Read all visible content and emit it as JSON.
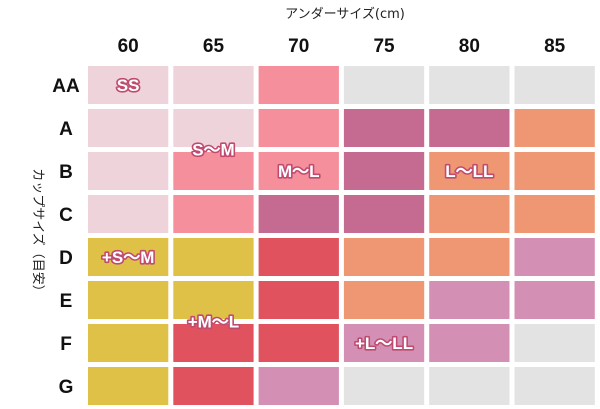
{
  "chart_data": {
    "type": "heatmap",
    "xlabel": "アンダーサイズ(cm)",
    "ylabel": "カップサイズ（目安）",
    "x": [
      "60",
      "65",
      "70",
      "75",
      "80",
      "85"
    ],
    "y": [
      "AA",
      "A",
      "B",
      "C",
      "D",
      "E",
      "F",
      "G"
    ],
    "size_labels": [
      "SS",
      "S～M",
      "M～L",
      "L～LL",
      "+S～M",
      "+M～L",
      "+L～LL"
    ],
    "cells": [
      [
        "SS",
        "SS",
        "S～M",
        "",
        "",
        ""
      ],
      [
        "SS",
        "SS",
        "S～M",
        "M～L",
        "M～L",
        "L～LL"
      ],
      [
        "SS",
        "S～M",
        "S～M",
        "M～L",
        "L～LL",
        "L～LL"
      ],
      [
        "SS",
        "S～M",
        "M～L",
        "M～L",
        "L～LL",
        "L～LL"
      ],
      [
        "+S～M",
        "+S～M",
        "+M～L",
        "L～LL",
        "L～LL",
        "+L～LL"
      ],
      [
        "+S～M",
        "+S～M",
        "+M～L",
        "L～LL",
        "+L～LL",
        "+L～LL"
      ],
      [
        "+S～M",
        "+M～L",
        "+M～L",
        "+L～LL",
        "+L～LL",
        ""
      ],
      [
        "+S～M",
        "+M～L",
        "+L～LL",
        "",
        "",
        ""
      ]
    ],
    "label_positions": [
      {
        "text": "SS",
        "col": 0.5,
        "row": 0.5
      },
      {
        "text": "S～M",
        "col": 1.5,
        "row": 2.0
      },
      {
        "text": "M～L",
        "col": 2.5,
        "row": 2.5
      },
      {
        "text": "L～LL",
        "col": 4.5,
        "row": 2.5
      },
      {
        "text": "+S～M",
        "col": 0.5,
        "row": 4.5
      },
      {
        "text": "+M～L",
        "col": 1.5,
        "row": 6.0
      },
      {
        "text": "+L～LL",
        "col": 3.5,
        "row": 6.5
      }
    ],
    "colors": {
      "SS": "#efd3da",
      "S～M": "#f58f9b",
      "M～L": "#c56b92",
      "L～LL": "#ef9773",
      "+S～M": "#dfc148",
      "+M～L": "#e0525e",
      "+L～LL": "#d490b4",
      "empty": "#e3e3e3"
    }
  }
}
